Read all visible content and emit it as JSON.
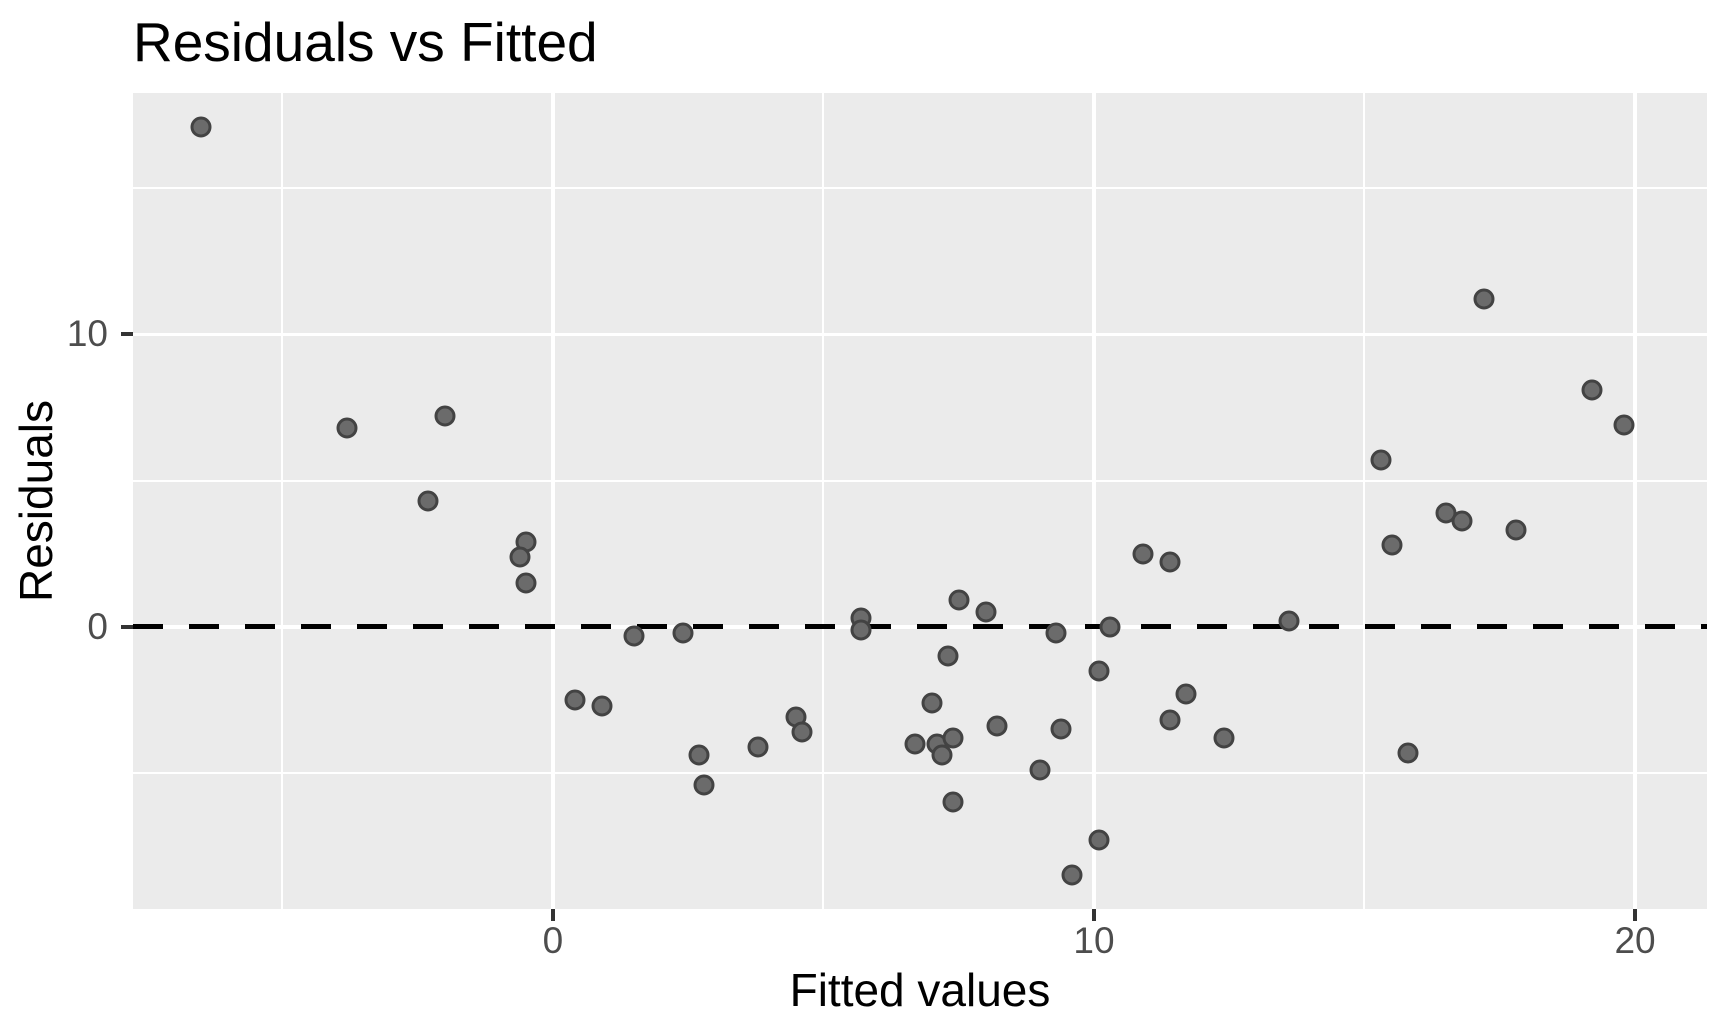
{
  "title": "Residuals vs Fitted",
  "colors": {
    "panel_background": "#EBEBEB",
    "gridline": "#FFFFFF",
    "point_fill": "#6B6B6B",
    "point_stroke": "#434343",
    "reference_line": "#000000",
    "tick_label": "#4D4D4D",
    "axis_title": "#000000"
  },
  "chart_data": {
    "type": "scatter",
    "title": "Residuals vs Fitted",
    "xlabel": "Fitted values",
    "ylabel": "Residuals",
    "x_ticks": [
      0,
      10,
      20
    ],
    "y_ticks": [
      10,
      0
    ],
    "x_minor_gridlines": [
      -5,
      5,
      15
    ],
    "y_minor_gridlines": [
      15,
      5,
      -5
    ],
    "xlim": [
      -7.76,
      21.33
    ],
    "ylim": [
      -9.65,
      18.25
    ],
    "grid": "major-and-minor, white on gray panel",
    "legend": "none",
    "reference_line": {
      "y": 0,
      "style": "dashed",
      "color": "#000000"
    },
    "points": [
      [
        -6.5,
        17.1
      ],
      [
        -3.8,
        6.8
      ],
      [
        -2.0,
        7.2
      ],
      [
        -2.3,
        4.3
      ],
      [
        -0.5,
        2.9
      ],
      [
        -0.6,
        2.4
      ],
      [
        -0.5,
        1.5
      ],
      [
        1.5,
        -0.3
      ],
      [
        0.4,
        -2.5
      ],
      [
        0.9,
        -2.7
      ],
      [
        2.4,
        -0.2
      ],
      [
        5.7,
        0.3
      ],
      [
        5.7,
        -0.1
      ],
      [
        7.5,
        0.9
      ],
      [
        8.0,
        0.5
      ],
      [
        9.3,
        -0.2
      ],
      [
        10.3,
        0.0
      ],
      [
        7.3,
        -1.0
      ],
      [
        10.1,
        -1.5
      ],
      [
        10.9,
        2.5
      ],
      [
        11.4,
        2.2
      ],
      [
        7.0,
        -2.6
      ],
      [
        8.2,
        -3.4
      ],
      [
        9.4,
        -3.5
      ],
      [
        4.5,
        -3.1
      ],
      [
        4.6,
        -3.6
      ],
      [
        3.8,
        -4.1
      ],
      [
        2.7,
        -4.4
      ],
      [
        6.7,
        -4.0
      ],
      [
        7.1,
        -4.0
      ],
      [
        7.4,
        -3.8
      ],
      [
        7.2,
        -4.4
      ],
      [
        9.0,
        -4.9
      ],
      [
        2.8,
        -5.4
      ],
      [
        7.4,
        -6.0
      ],
      [
        10.1,
        -7.3
      ],
      [
        9.6,
        -8.5
      ],
      [
        17.2,
        11.2
      ],
      [
        19.2,
        8.1
      ],
      [
        19.8,
        6.9
      ],
      [
        15.3,
        5.7
      ],
      [
        16.5,
        3.9
      ],
      [
        16.8,
        3.6
      ],
      [
        17.8,
        3.3
      ],
      [
        15.5,
        2.8
      ],
      [
        13.6,
        0.2
      ],
      [
        11.7,
        -2.3
      ],
      [
        11.4,
        -3.2
      ],
      [
        12.4,
        -3.8
      ],
      [
        15.8,
        -4.3
      ]
    ]
  }
}
